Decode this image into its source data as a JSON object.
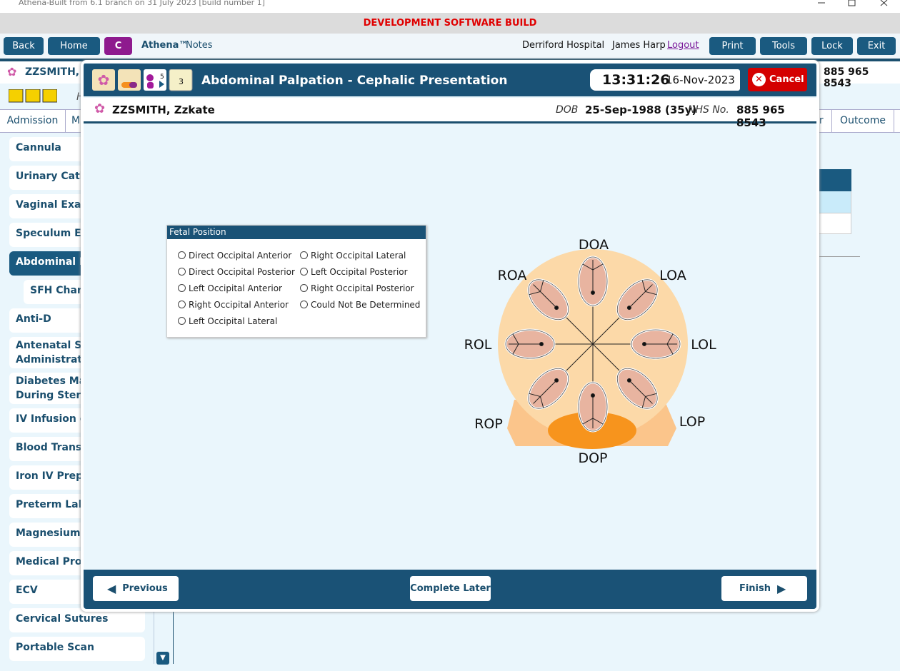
{
  "window": {
    "title": "Athena-Built from 6.1 branch on 31 July 2023 [build number 1]"
  },
  "banner": "DEVELOPMENT SOFTWARE BUILD",
  "toolbar": {
    "back": "Back",
    "home": "Home",
    "c": "C",
    "app_name": "Athena™",
    "app_section": "Notes",
    "hospital": "Derriford Hospital",
    "user": "James Harp",
    "logout": "Logout",
    "print": "Print",
    "tools": "Tools",
    "lock": "Lock",
    "exit": "Exit"
  },
  "patient_bar": {
    "name": "ZZSMITH, Z",
    "nhs": "885 965 8543"
  },
  "sub_header": "H",
  "tabs": [
    "Admission",
    "M",
    "ur",
    "Outcome"
  ],
  "side_menu": [
    "Cannula",
    "Urinary Cathe",
    "Vaginal Exami",
    "Speculum Exa",
    "Abdominal Pa",
    "SFH Chart",
    "Anti-D",
    "Antenatal Ster\nAdministration",
    "Diabetes Man\nDuring Steroid",
    "IV Infusion of",
    "Blood Transfu",
    "Iron IV Prepar",
    "Preterm Labou",
    "Magnesium Su",
    "Medical Proce",
    "ECV",
    "Cervical Sutures",
    "Portable Scan"
  ],
  "dialog": {
    "icon_badges": [
      "5",
      "3"
    ],
    "title": "Abdominal Palpation - Cephalic Presentation",
    "time": "13:31:26",
    "date": "16-Nov-2023",
    "cancel": "Cancel",
    "patient": {
      "name": "ZZSMITH, Zzkate",
      "dob_label": "DOB",
      "dob": "25-Sep-1988 (35y)",
      "nhs_label": "NHS No.",
      "nhs": "885 965 8543"
    },
    "fetal_position": {
      "title": "Fetal Position",
      "options": [
        "Direct Occipital Anterior",
        "Direct Occipital Posterior",
        "Left Occipital Anterior",
        "Right Occipital Anterior",
        "Left Occipital Lateral",
        "Right Occipital Lateral",
        "Left Occipital Posterior",
        "Right Occipital Posterior",
        "Could Not Be Determined"
      ]
    },
    "diagram_labels": {
      "doa": "DOA",
      "roa": "ROA",
      "loa": "LOA",
      "rol": "ROL",
      "lol": "LOL",
      "rop": "ROP",
      "lop": "LOP",
      "dop": "DOP"
    },
    "buttons": {
      "previous": "Previous",
      "complete_later": "Complete Later",
      "finish": "Finish"
    }
  }
}
